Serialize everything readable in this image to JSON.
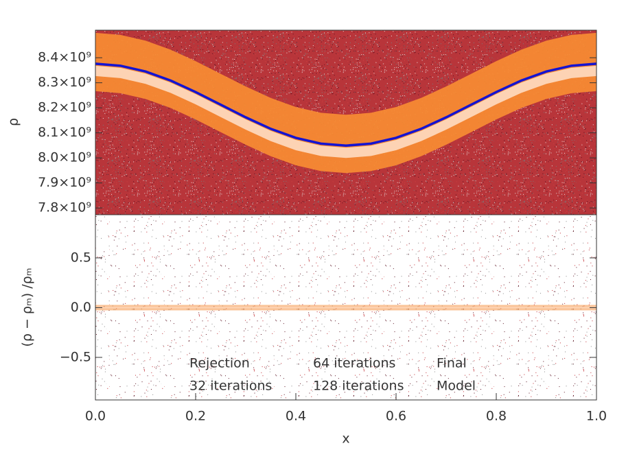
{
  "chart_data": [
    {
      "type": "line",
      "ylabel": "ρ",
      "x": [
        0,
        0.05,
        0.1,
        0.15,
        0.2,
        0.25,
        0.3,
        0.35,
        0.4,
        0.45,
        0.5,
        0.55,
        0.6,
        0.65,
        0.7,
        0.75,
        0.8,
        0.85,
        0.9,
        0.95,
        1
      ],
      "series": [
        {
          "name": "Model",
          "color": "#1414d2",
          "values": [
            8376000000,
            8368000000,
            8345000000,
            8309000000,
            8263000000,
            8212500000,
            8162000000,
            8116000000,
            8080000000,
            8057000000,
            8049000000,
            8057000000,
            8080000000,
            8116000000,
            8162000000,
            8212500000,
            8263000000,
            8309000000,
            8345000000,
            8368000000,
            8376000000
          ]
        }
      ],
      "xlim": [
        0,
        1
      ],
      "ylim": [
        7773000000,
        8510000000
      ],
      "yticks": [
        {
          "value": 7800000000,
          "label": "7.8×10⁹"
        },
        {
          "value": 7900000000,
          "label": "7.9×10⁹"
        },
        {
          "value": 8000000000,
          "label": "8.0×10⁹"
        },
        {
          "value": 8100000000,
          "label": "8.1×10⁹"
        },
        {
          "value": 8200000000,
          "label": "8.2×10⁹"
        },
        {
          "value": 8300000000,
          "label": "8.3×10⁹"
        },
        {
          "value": 8400000000,
          "label": "8.4×10⁹"
        }
      ]
    },
    {
      "type": "line",
      "xlabel": "x",
      "ylabel": "(ρ − ρₘ) /ρₘ",
      "xlim": [
        0,
        1
      ],
      "xticks": [
        {
          "value": 0,
          "label": "0.0"
        },
        0.2,
        0.4,
        0.6,
        0.8,
        {
          "value": 1,
          "label": "1.0"
        }
      ],
      "ylim": [
        -0.928,
        0.934
      ],
      "yticks": [
        {
          "value": -0.5,
          "label": "−0.5"
        },
        {
          "value": 0,
          "label": "0.0"
        },
        0.5
      ],
      "legend": [
        {
          "name": "Rejection",
          "color": "#7a7a7a"
        },
        {
          "name": "64 iterations",
          "color": "#c0262c"
        },
        {
          "name": "Final",
          "color": "#b89070"
        },
        {
          "name": "32 iterations",
          "color": "#5a1020"
        },
        {
          "name": "128 iterations",
          "color": "#f08a3a"
        },
        {
          "name": "Model",
          "color": "#1414d2"
        }
      ]
    }
  ]
}
